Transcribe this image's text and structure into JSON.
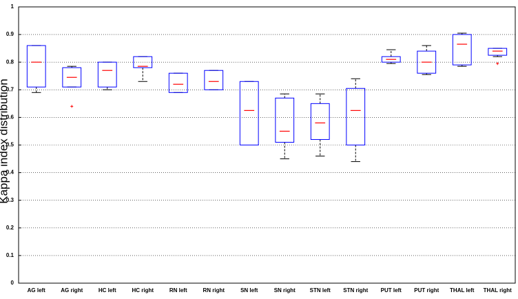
{
  "chart_data": {
    "type": "box",
    "y_label": "Kappa index distribution",
    "categories": [
      "AG left",
      "AG right",
      "HC left",
      "HC right",
      "RN left",
      "RN right",
      "SN left",
      "SN right",
      "STN left",
      "STN right",
      "PUT left",
      "PUT right",
      "THAL left",
      "THAL right"
    ],
    "boxes": [
      {
        "low": 0.69,
        "q1": 0.71,
        "median": 0.8,
        "q3": 0.86,
        "high": 0.86
      },
      {
        "low": 0.71,
        "q1": 0.71,
        "median": 0.745,
        "q3": 0.78,
        "high": 0.785,
        "outliers": [
          0.64
        ]
      },
      {
        "low": 0.7,
        "q1": 0.71,
        "median": 0.77,
        "q3": 0.8,
        "high": 0.8
      },
      {
        "low": 0.73,
        "q1": 0.78,
        "median": 0.785,
        "q3": 0.82,
        "high": 0.82
      },
      {
        "low": 0.69,
        "q1": 0.69,
        "median": 0.72,
        "q3": 0.76,
        "high": 0.76
      },
      {
        "low": 0.7,
        "q1": 0.7,
        "median": 0.73,
        "q3": 0.77,
        "high": 0.77
      },
      {
        "low": 0.5,
        "q1": 0.5,
        "median": 0.625,
        "q3": 0.73,
        "high": 0.73
      },
      {
        "low": 0.45,
        "q1": 0.51,
        "median": 0.55,
        "q3": 0.67,
        "high": 0.685
      },
      {
        "low": 0.46,
        "q1": 0.52,
        "median": 0.58,
        "q3": 0.65,
        "high": 0.685
      },
      {
        "low": 0.44,
        "q1": 0.5,
        "median": 0.625,
        "q3": 0.705,
        "high": 0.74
      },
      {
        "low": 0.795,
        "q1": 0.8,
        "median": 0.81,
        "q3": 0.82,
        "high": 0.845
      },
      {
        "low": 0.755,
        "q1": 0.76,
        "median": 0.8,
        "q3": 0.84,
        "high": 0.86
      },
      {
        "low": 0.785,
        "q1": 0.79,
        "median": 0.865,
        "q3": 0.9,
        "high": 0.905
      },
      {
        "low": 0.82,
        "q1": 0.825,
        "median": 0.84,
        "q3": 0.85,
        "high": 0.85,
        "outliers": [
          0.795
        ]
      }
    ],
    "box_color": "#0000ff",
    "median_color": "#ff0000",
    "whisker_color": "#000000",
    "outlier_color": "#ff0000",
    "ylim": [
      0,
      1
    ],
    "yticks": [
      0,
      0.1,
      0.2,
      0.3,
      0.4,
      0.5,
      0.6,
      0.7,
      0.8,
      0.9,
      1
    ],
    "grid": true
  }
}
